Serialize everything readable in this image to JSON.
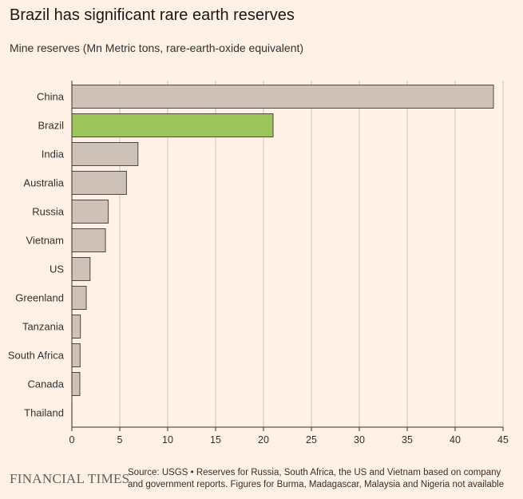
{
  "title": "Brazil has significant rare earth reserves",
  "subtitle": "Mine reserves (Mn Metric tons, rare-earth-oxide equivalent)",
  "footer": {
    "logo": "FINANCIAL TIMES",
    "source": "Source: USGS • Reserves for Russia, South Africa, the US and Vietnam based on company and government reports. Figures for Burma, Madagascar, Malaysia and Nigeria not available"
  },
  "colors": {
    "background": "#fff1e5",
    "bar_default": "#cec1b8",
    "bar_highlight": "#9ec45c",
    "bar_stroke": "#4d4642",
    "grid": "#ccc1b7",
    "axis": "#33302e"
  },
  "chart_data": {
    "type": "bar",
    "orientation": "horizontal",
    "title": "Brazil has significant rare earth reserves",
    "xlabel": "Mine reserves (Mn Metric tons, rare-earth-oxide equivalent)",
    "ylabel": "",
    "categories": [
      "China",
      "Brazil",
      "India",
      "Australia",
      "Russia",
      "Vietnam",
      "US",
      "Greenland",
      "Tanzania",
      "South Africa",
      "Canada",
      "Thailand"
    ],
    "values": [
      44,
      21,
      6.9,
      5.7,
      3.8,
      3.5,
      1.9,
      1.5,
      0.89,
      0.86,
      0.83,
      0.0045
    ],
    "highlight": "Brazil",
    "xlim": [
      0,
      45
    ],
    "xticks": [
      0,
      5,
      10,
      15,
      20,
      25,
      30,
      35,
      40,
      45
    ],
    "grid": true
  }
}
